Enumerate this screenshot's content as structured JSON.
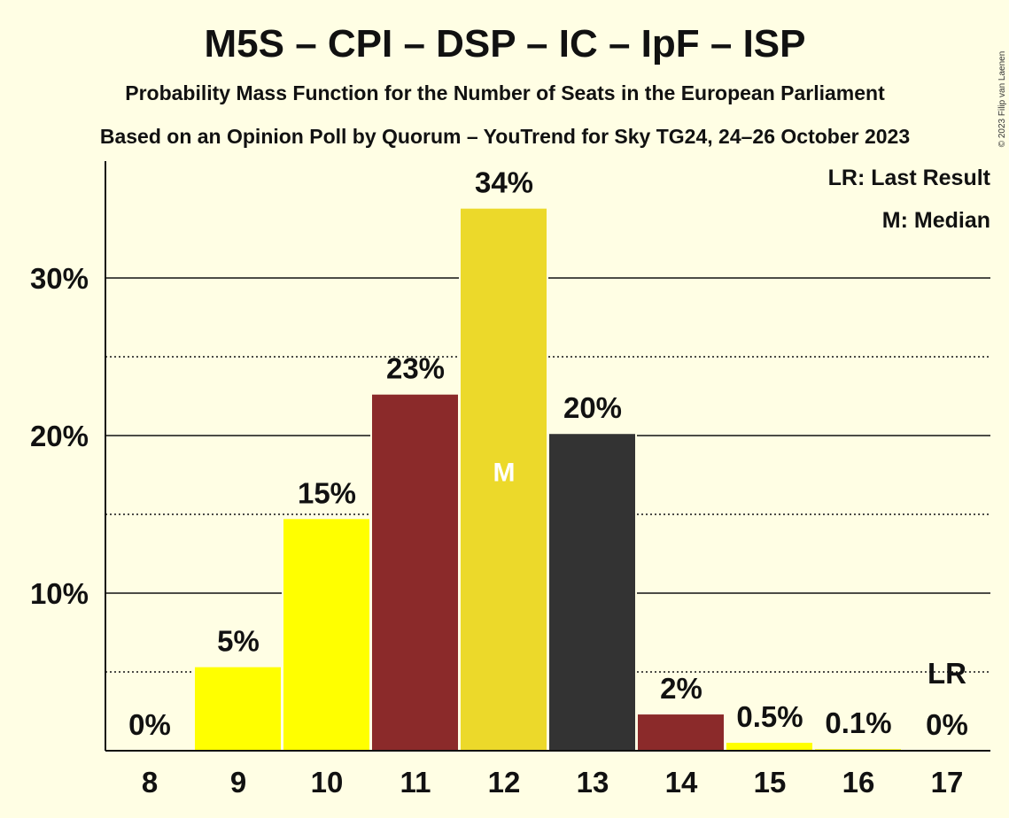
{
  "header": {
    "title": "M5S – CPI – DSP – IC – IpF – ISP",
    "subtitle1": "Probability Mass Function for the Number of Seats in the European Parliament",
    "subtitle2": "Based on an Opinion Poll by Quorum – YouTrend for Sky TG24, 24–26 October 2023",
    "copyright": "© 2023 Filip van Laenen"
  },
  "legend": {
    "last_result": "LR: Last Result",
    "median": "M: Median"
  },
  "chart_data": {
    "type": "bar",
    "categories": [
      "8",
      "9",
      "10",
      "11",
      "12",
      "13",
      "14",
      "15",
      "16",
      "17"
    ],
    "values": [
      0,
      5.3,
      14.7,
      22.6,
      34.4,
      20.1,
      2.3,
      0.5,
      0.1,
      0
    ],
    "labels": [
      "0%",
      "5%",
      "15%",
      "23%",
      "34%",
      "20%",
      "2%",
      "0.5%",
      "0.1%",
      "0%"
    ],
    "bar_colors": [
      "#FFFF00",
      "#FFFF00",
      "#FFFF00",
      "#8B2A2A",
      "#ECD92A",
      "#333333",
      "#8B2A2A",
      "#FFFF00",
      "#FFFF00",
      "#FFFF00"
    ],
    "y_ticks": [
      10,
      20,
      30
    ],
    "y_tick_labels": [
      "10%",
      "20%",
      "30%"
    ],
    "y_minor_ticks": [
      5,
      15,
      25
    ],
    "ylim": [
      0,
      37.5
    ],
    "median_category": "12",
    "median_marker": "M",
    "last_result_category": "17",
    "last_result_marker": "LR",
    "background": "#FFFEE4"
  }
}
